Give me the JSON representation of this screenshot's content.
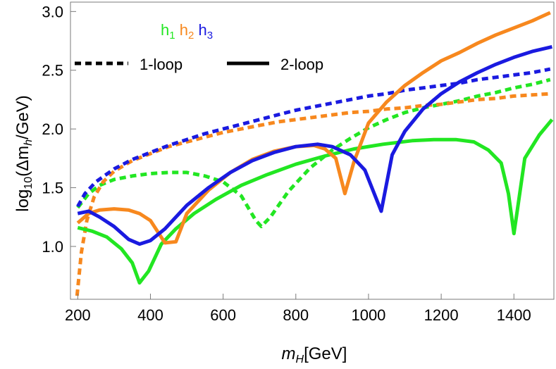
{
  "chart_data": {
    "type": "line",
    "xlabel": {
      "main": "m",
      "sub": "H",
      "unit": "[GeV]"
    },
    "ylabel": {
      "pre": "log",
      "pre_sub": "10",
      "mid": "(Δm",
      "mid_sub": "h",
      "post": "/GeV)"
    },
    "xlim": [
      180,
      1510
    ],
    "ylim": [
      0.55,
      3.08
    ],
    "xticks": [
      200,
      400,
      600,
      800,
      1000,
      1200,
      1400
    ],
    "xtick_labels": [
      "200",
      "400",
      "600",
      "800",
      "1000",
      "1200",
      "1400"
    ],
    "yticks": [
      1.0,
      1.5,
      2.0,
      2.5,
      3.0
    ],
    "ytick_labels": [
      "1.0",
      "1.5",
      "2.0",
      "2.5",
      "3.0"
    ],
    "grid": false,
    "colors": {
      "h1": "#22e622",
      "h2": "#f7881e",
      "h3": "#1a1ae0"
    },
    "legend": {
      "placement": "top-left",
      "h_labels": [
        {
          "base": "h",
          "sub": "1",
          "color": "#22e622"
        },
        {
          "base": "h",
          "sub": "2",
          "color": "#f7881e"
        },
        {
          "base": "h",
          "sub": "3",
          "color": "#1a1ae0"
        }
      ],
      "styles": [
        {
          "label": "1-loop",
          "dash": "dotted"
        },
        {
          "label": "2-loop",
          "dash": "solid"
        }
      ]
    },
    "series": [
      {
        "higgs": "h1",
        "loop": "1-loop",
        "color": "#22e622",
        "points": [
          [
            200,
            1.33
          ],
          [
            230,
            1.45
          ],
          [
            260,
            1.52
          ],
          [
            300,
            1.57
          ],
          [
            350,
            1.6
          ],
          [
            400,
            1.62
          ],
          [
            450,
            1.63
          ],
          [
            500,
            1.63
          ],
          [
            550,
            1.6
          ],
          [
            600,
            1.55
          ],
          [
            650,
            1.43
          ],
          [
            690,
            1.22
          ],
          [
            705,
            1.17
          ],
          [
            730,
            1.25
          ],
          [
            780,
            1.47
          ],
          [
            840,
            1.67
          ],
          [
            900,
            1.82
          ],
          [
            950,
            1.92
          ],
          [
            1000,
            2.01
          ],
          [
            1050,
            2.08
          ],
          [
            1100,
            2.14
          ],
          [
            1150,
            2.18
          ],
          [
            1200,
            2.21
          ],
          [
            1250,
            2.24
          ],
          [
            1300,
            2.28
          ],
          [
            1350,
            2.31
          ],
          [
            1400,
            2.35
          ],
          [
            1450,
            2.38
          ],
          [
            1500,
            2.42
          ]
        ]
      },
      {
        "higgs": "h2",
        "loop": "1-loop",
        "color": "#f7881e",
        "points": [
          [
            198,
            0.58
          ],
          [
            210,
            0.95
          ],
          [
            225,
            1.22
          ],
          [
            245,
            1.42
          ],
          [
            270,
            1.55
          ],
          [
            300,
            1.64
          ],
          [
            350,
            1.73
          ],
          [
            400,
            1.79
          ],
          [
            450,
            1.85
          ],
          [
            500,
            1.89
          ],
          [
            550,
            1.93
          ],
          [
            600,
            1.97
          ],
          [
            650,
            2.0
          ],
          [
            700,
            2.03
          ],
          [
            750,
            2.06
          ],
          [
            800,
            2.08
          ],
          [
            850,
            2.1
          ],
          [
            900,
            2.12
          ],
          [
            950,
            2.14
          ],
          [
            1000,
            2.15
          ],
          [
            1050,
            2.17
          ],
          [
            1100,
            2.18
          ],
          [
            1150,
            2.2
          ],
          [
            1200,
            2.21
          ],
          [
            1250,
            2.23
          ],
          [
            1300,
            2.25
          ],
          [
            1350,
            2.26
          ],
          [
            1400,
            2.28
          ],
          [
            1450,
            2.29
          ],
          [
            1500,
            2.3
          ]
        ]
      },
      {
        "higgs": "h3",
        "loop": "1-loop",
        "color": "#1a1ae0",
        "points": [
          [
            200,
            1.34
          ],
          [
            220,
            1.45
          ],
          [
            250,
            1.55
          ],
          [
            300,
            1.66
          ],
          [
            350,
            1.74
          ],
          [
            400,
            1.8
          ],
          [
            450,
            1.86
          ],
          [
            500,
            1.91
          ],
          [
            550,
            1.96
          ],
          [
            600,
            2.0
          ],
          [
            650,
            2.04
          ],
          [
            700,
            2.08
          ],
          [
            750,
            2.12
          ],
          [
            800,
            2.16
          ],
          [
            850,
            2.19
          ],
          [
            900,
            2.22
          ],
          [
            950,
            2.25
          ],
          [
            1000,
            2.28
          ],
          [
            1050,
            2.3
          ],
          [
            1100,
            2.33
          ],
          [
            1150,
            2.35
          ],
          [
            1200,
            2.37
          ],
          [
            1250,
            2.39
          ],
          [
            1300,
            2.42
          ],
          [
            1350,
            2.44
          ],
          [
            1400,
            2.46
          ],
          [
            1450,
            2.48
          ],
          [
            1500,
            2.51
          ]
        ]
      },
      {
        "higgs": "h1",
        "loop": "2-loop",
        "color": "#22e622",
        "points": [
          [
            200,
            1.16
          ],
          [
            240,
            1.13
          ],
          [
            280,
            1.08
          ],
          [
            320,
            0.98
          ],
          [
            350,
            0.86
          ],
          [
            370,
            0.69
          ],
          [
            395,
            0.79
          ],
          [
            430,
            1.02
          ],
          [
            470,
            1.15
          ],
          [
            520,
            1.28
          ],
          [
            580,
            1.4
          ],
          [
            650,
            1.52
          ],
          [
            720,
            1.61
          ],
          [
            800,
            1.7
          ],
          [
            880,
            1.77
          ],
          [
            960,
            1.83
          ],
          [
            1040,
            1.87
          ],
          [
            1120,
            1.9
          ],
          [
            1180,
            1.91
          ],
          [
            1240,
            1.91
          ],
          [
            1290,
            1.89
          ],
          [
            1330,
            1.82
          ],
          [
            1365,
            1.71
          ],
          [
            1385,
            1.45
          ],
          [
            1400,
            1.11
          ],
          [
            1410,
            1.32
          ],
          [
            1430,
            1.75
          ],
          [
            1470,
            1.95
          ],
          [
            1505,
            2.08
          ]
        ]
      },
      {
        "higgs": "h2",
        "loop": "2-loop",
        "color": "#f7881e",
        "points": [
          [
            200,
            1.2
          ],
          [
            230,
            1.28
          ],
          [
            260,
            1.31
          ],
          [
            300,
            1.32
          ],
          [
            340,
            1.31
          ],
          [
            370,
            1.28
          ],
          [
            400,
            1.22
          ],
          [
            440,
            1.03
          ],
          [
            470,
            1.04
          ],
          [
            500,
            1.28
          ],
          [
            560,
            1.48
          ],
          [
            620,
            1.63
          ],
          [
            680,
            1.74
          ],
          [
            740,
            1.81
          ],
          [
            800,
            1.85
          ],
          [
            850,
            1.86
          ],
          [
            880,
            1.83
          ],
          [
            910,
            1.75
          ],
          [
            935,
            1.45
          ],
          [
            960,
            1.72
          ],
          [
            1000,
            2.05
          ],
          [
            1050,
            2.23
          ],
          [
            1100,
            2.37
          ],
          [
            1150,
            2.48
          ],
          [
            1200,
            2.58
          ],
          [
            1250,
            2.65
          ],
          [
            1300,
            2.73
          ],
          [
            1350,
            2.8
          ],
          [
            1400,
            2.86
          ],
          [
            1450,
            2.92
          ],
          [
            1500,
            2.99
          ]
        ]
      },
      {
        "higgs": "h3",
        "loop": "2-loop",
        "color": "#1a1ae0",
        "points": [
          [
            200,
            1.28
          ],
          [
            230,
            1.3
          ],
          [
            260,
            1.25
          ],
          [
            300,
            1.17
          ],
          [
            340,
            1.06
          ],
          [
            370,
            1.02
          ],
          [
            400,
            1.05
          ],
          [
            440,
            1.15
          ],
          [
            500,
            1.35
          ],
          [
            560,
            1.5
          ],
          [
            620,
            1.63
          ],
          [
            680,
            1.73
          ],
          [
            740,
            1.8
          ],
          [
            800,
            1.85
          ],
          [
            860,
            1.87
          ],
          [
            900,
            1.85
          ],
          [
            950,
            1.78
          ],
          [
            990,
            1.65
          ],
          [
            1035,
            1.3
          ],
          [
            1065,
            1.78
          ],
          [
            1100,
            1.98
          ],
          [
            1150,
            2.17
          ],
          [
            1200,
            2.3
          ],
          [
            1250,
            2.4
          ],
          [
            1300,
            2.48
          ],
          [
            1350,
            2.55
          ],
          [
            1400,
            2.61
          ],
          [
            1450,
            2.66
          ],
          [
            1505,
            2.7
          ]
        ]
      }
    ]
  }
}
